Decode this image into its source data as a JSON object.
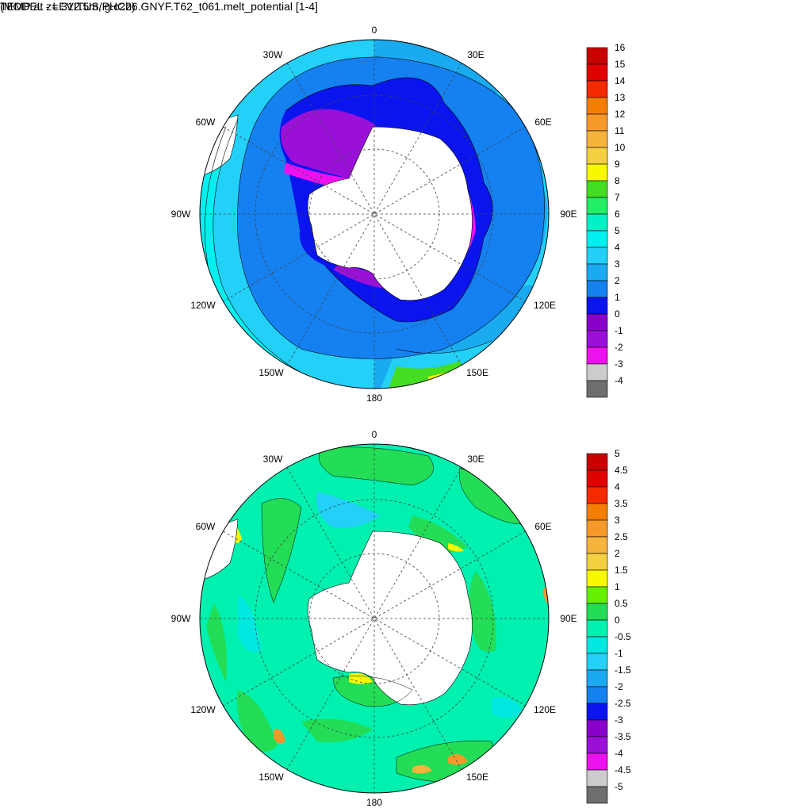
{
  "panels": {
    "top": {
      "title": "TEMP at z= 312.5m, g.c2b6.GNYF.T62_t061.melt_potential [1-4]",
      "colorbar": {
        "labels": [
          "16",
          "15",
          "14",
          "13",
          "12",
          "11",
          "10",
          "9",
          "8",
          "7",
          "6",
          "5",
          "4",
          "3",
          "2",
          "1",
          "0",
          "-1",
          "-2",
          "-3",
          "-4"
        ],
        "colors": [
          "#c80000",
          "#e00000",
          "#f52a00",
          "#f57d00",
          "#f59a2a",
          "#f5b43c",
          "#f5d040",
          "#f8f800",
          "#44dd22",
          "#22ee66",
          "#00f0c8",
          "#00f0f0",
          "#22d0f8",
          "#1aaaf0",
          "#1580f0",
          "#0a14ee",
          "#8800cc",
          "#9a10d8",
          "#ee10ee",
          "#cccccc",
          "#6e6e6e"
        ]
      }
    },
    "bottom": {
      "title": "(MODEL - LEVITUS/PHC2)",
      "colorbar": {
        "labels": [
          "5",
          "4.5",
          "4",
          "3.5",
          "3",
          "2.5",
          "2",
          "1.5",
          "1",
          "0.5",
          "0",
          "-0.5",
          "-1",
          "-1.5",
          "-2",
          "-2.5",
          "-3",
          "-3.5",
          "-4",
          "-4.5",
          "-5"
        ],
        "colors": [
          "#c80000",
          "#e00000",
          "#f52a00",
          "#f57d00",
          "#f59a2a",
          "#f5b43c",
          "#f5d040",
          "#f8f800",
          "#66f000",
          "#22dd55",
          "#00f0b0",
          "#00e8e0",
          "#22d0f8",
          "#1aaaf0",
          "#1580f0",
          "#0a14ee",
          "#8800cc",
          "#9a10d8",
          "#ee10ee",
          "#cccccc",
          "#6e6e6e"
        ]
      }
    }
  },
  "longitude_labels": {
    "lon_0": "0",
    "lon_30e": "30E",
    "lon_60e": "60E",
    "lon_90e": "90E",
    "lon_120e": "120E",
    "lon_150e": "150E",
    "lon_180": "180",
    "lon_150w": "150W",
    "lon_120w": "120W",
    "lon_90w": "90W",
    "lon_60w": "60W",
    "lon_30w": "30W"
  }
}
